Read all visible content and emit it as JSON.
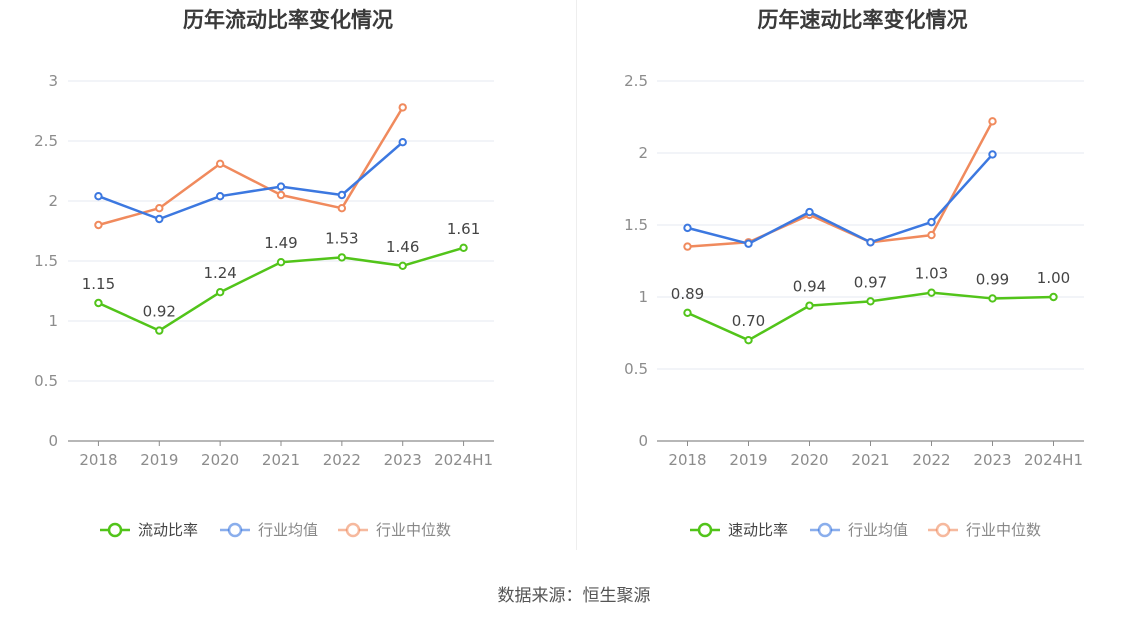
{
  "chart_data": [
    {
      "type": "line",
      "title": "历年流动比率变化情况",
      "categories": [
        "2018",
        "2019",
        "2020",
        "2021",
        "2022",
        "2023",
        "2024H1"
      ],
      "ylim": [
        0,
        3
      ],
      "yticks": [
        0,
        0.5,
        1,
        1.5,
        2,
        2.5,
        3
      ],
      "ytick_labels": [
        "0",
        "0.5",
        "1",
        "1.5",
        "2",
        "2.5",
        "3"
      ],
      "grid": true,
      "legend_position": "bottom",
      "series": [
        {
          "name": "流动比率",
          "color": "#52c41a",
          "values": [
            1.15,
            0.92,
            1.24,
            1.49,
            1.53,
            1.46,
            1.61
          ],
          "labels": [
            "1.15",
            "0.92",
            "1.24",
            "1.49",
            "1.53",
            "1.46",
            "1.61"
          ]
        },
        {
          "name": "行业均值",
          "color": "#3c78e0",
          "values": [
            2.04,
            1.85,
            2.04,
            2.12,
            2.05,
            2.49,
            null
          ]
        },
        {
          "name": "行业中位数",
          "color": "#f08a5d",
          "values": [
            1.8,
            1.94,
            2.31,
            2.05,
            1.94,
            2.78,
            null
          ]
        }
      ]
    },
    {
      "type": "line",
      "title": "历年速动比率变化情况",
      "categories": [
        "2018",
        "2019",
        "2020",
        "2021",
        "2022",
        "2023",
        "2024H1"
      ],
      "ylim": [
        0,
        2.5
      ],
      "yticks": [
        0,
        0.5,
        1,
        1.5,
        2,
        2.5
      ],
      "ytick_labels": [
        "0",
        "0.5",
        "1",
        "1.5",
        "2",
        "2.5"
      ],
      "grid": true,
      "legend_position": "bottom",
      "series": [
        {
          "name": "速动比率",
          "color": "#52c41a",
          "values": [
            0.89,
            0.7,
            0.94,
            0.97,
            1.03,
            0.99,
            1.0
          ],
          "labels": [
            "0.89",
            "0.70",
            "0.94",
            "0.97",
            "1.03",
            "0.99",
            "1.00"
          ]
        },
        {
          "name": "行业均值",
          "color": "#3c78e0",
          "values": [
            1.48,
            1.37,
            1.59,
            1.38,
            1.52,
            1.99,
            null
          ]
        },
        {
          "name": "行业中位数",
          "color": "#f08a5d",
          "values": [
            1.35,
            1.38,
            1.57,
            1.38,
            1.43,
            2.22,
            null
          ]
        }
      ]
    }
  ],
  "source_text": "数据来源：恒生聚源"
}
